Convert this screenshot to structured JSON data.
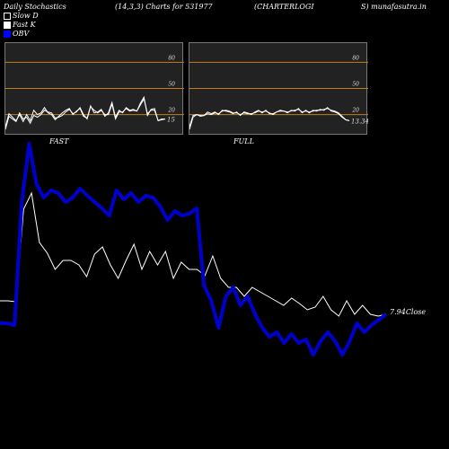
{
  "header": {
    "title": "Daily Stochastics",
    "params": "(14,3,3) Charts for 531977",
    "company": "(CHARTERLOGI",
    "site": "S) munafasutra.in"
  },
  "legend": [
    {
      "label": "Slow  D",
      "color": "#000000"
    },
    {
      "label": "Fast K",
      "color": "#ffffff"
    },
    {
      "label": "OBV",
      "color": "#0000ff"
    }
  ],
  "chart_data": [
    {
      "type": "line",
      "panel": "FAST",
      "levels": [
        80,
        50,
        20
      ],
      "level_labels": [
        "80",
        "50",
        "20"
      ],
      "ylim": [
        0,
        100
      ],
      "last_value_label": "15",
      "series": [
        {
          "values": [
            3,
            18,
            15,
            12,
            22,
            15,
            17,
            10,
            19,
            17,
            20,
            25,
            23,
            22,
            16,
            17,
            19,
            23,
            26,
            21,
            23,
            28,
            20,
            15,
            29,
            25,
            22,
            25,
            20,
            20,
            32,
            15,
            23,
            23,
            27,
            24,
            25,
            24,
            31,
            38,
            21,
            25,
            25,
            13,
            14,
            15
          ]
        },
        {
          "values": [
            6,
            21,
            17,
            13,
            20,
            12,
            20,
            13,
            25,
            20,
            22,
            28,
            22,
            20,
            14,
            18,
            22,
            25,
            27,
            20,
            24,
            27,
            18,
            16,
            30,
            22,
            23,
            26,
            18,
            22,
            34,
            17,
            25,
            22,
            28,
            25,
            26,
            24,
            33,
            40,
            19,
            26,
            27,
            13,
            15,
            15
          ]
        }
      ]
    },
    {
      "type": "line",
      "panel": "FULL",
      "levels": [
        80,
        50,
        20
      ],
      "level_labels": [
        "80",
        "50",
        "20"
      ],
      "ylim": [
        0,
        100
      ],
      "last_value_label": "13.34",
      "series": [
        {
          "values": [
            3,
            17,
            20,
            18,
            19,
            21,
            20,
            22,
            21,
            24,
            25,
            24,
            22,
            22,
            20,
            22,
            21,
            21,
            22,
            24,
            23,
            24,
            22,
            20,
            23,
            24,
            24,
            23,
            24,
            25,
            26,
            23,
            24,
            23,
            24,
            25,
            25,
            26,
            27,
            25,
            24,
            22,
            18,
            14,
            13
          ]
        },
        {
          "values": [
            6,
            19,
            20,
            19,
            19,
            23,
            21,
            23,
            20,
            25,
            24,
            23,
            21,
            23,
            19,
            23,
            22,
            20,
            23,
            25,
            22,
            25,
            21,
            21,
            23,
            25,
            24,
            22,
            25,
            24,
            27,
            22,
            25,
            22,
            25,
            24,
            26,
            25,
            28,
            24,
            23,
            21,
            17,
            14,
            13
          ]
        }
      ]
    },
    {
      "type": "line",
      "panel": "main",
      "close_label": "7.94",
      "close_word": "Close",
      "series": [
        {
          "values": [
            335,
            335,
            336,
            233,
            215,
            270,
            282,
            300,
            290,
            290,
            295,
            308,
            283,
            275,
            295,
            310,
            290,
            272,
            300,
            280,
            295,
            280,
            310,
            292,
            300,
            300,
            307,
            285,
            310,
            320,
            320,
            330,
            320,
            325,
            330,
            335,
            340,
            332,
            338,
            345,
            342,
            330,
            345,
            352,
            335,
            350,
            340,
            350,
            352,
            350
          ]
        },
        {
          "values": [
            360,
            360,
            362,
            225,
            160,
            205,
            220,
            212,
            215,
            225,
            220,
            210,
            218,
            225,
            232,
            240,
            212,
            222,
            215,
            225,
            218,
            220,
            230,
            245,
            235,
            240,
            238,
            232,
            318,
            335,
            365,
            330,
            320,
            340,
            330,
            350,
            365,
            375,
            370,
            382,
            372,
            382,
            378,
            395,
            380,
            370,
            380,
            395,
            380,
            360,
            370,
            362,
            356,
            350
          ]
        }
      ]
    }
  ],
  "labels": {
    "fast": "FAST",
    "full": "FULL"
  }
}
